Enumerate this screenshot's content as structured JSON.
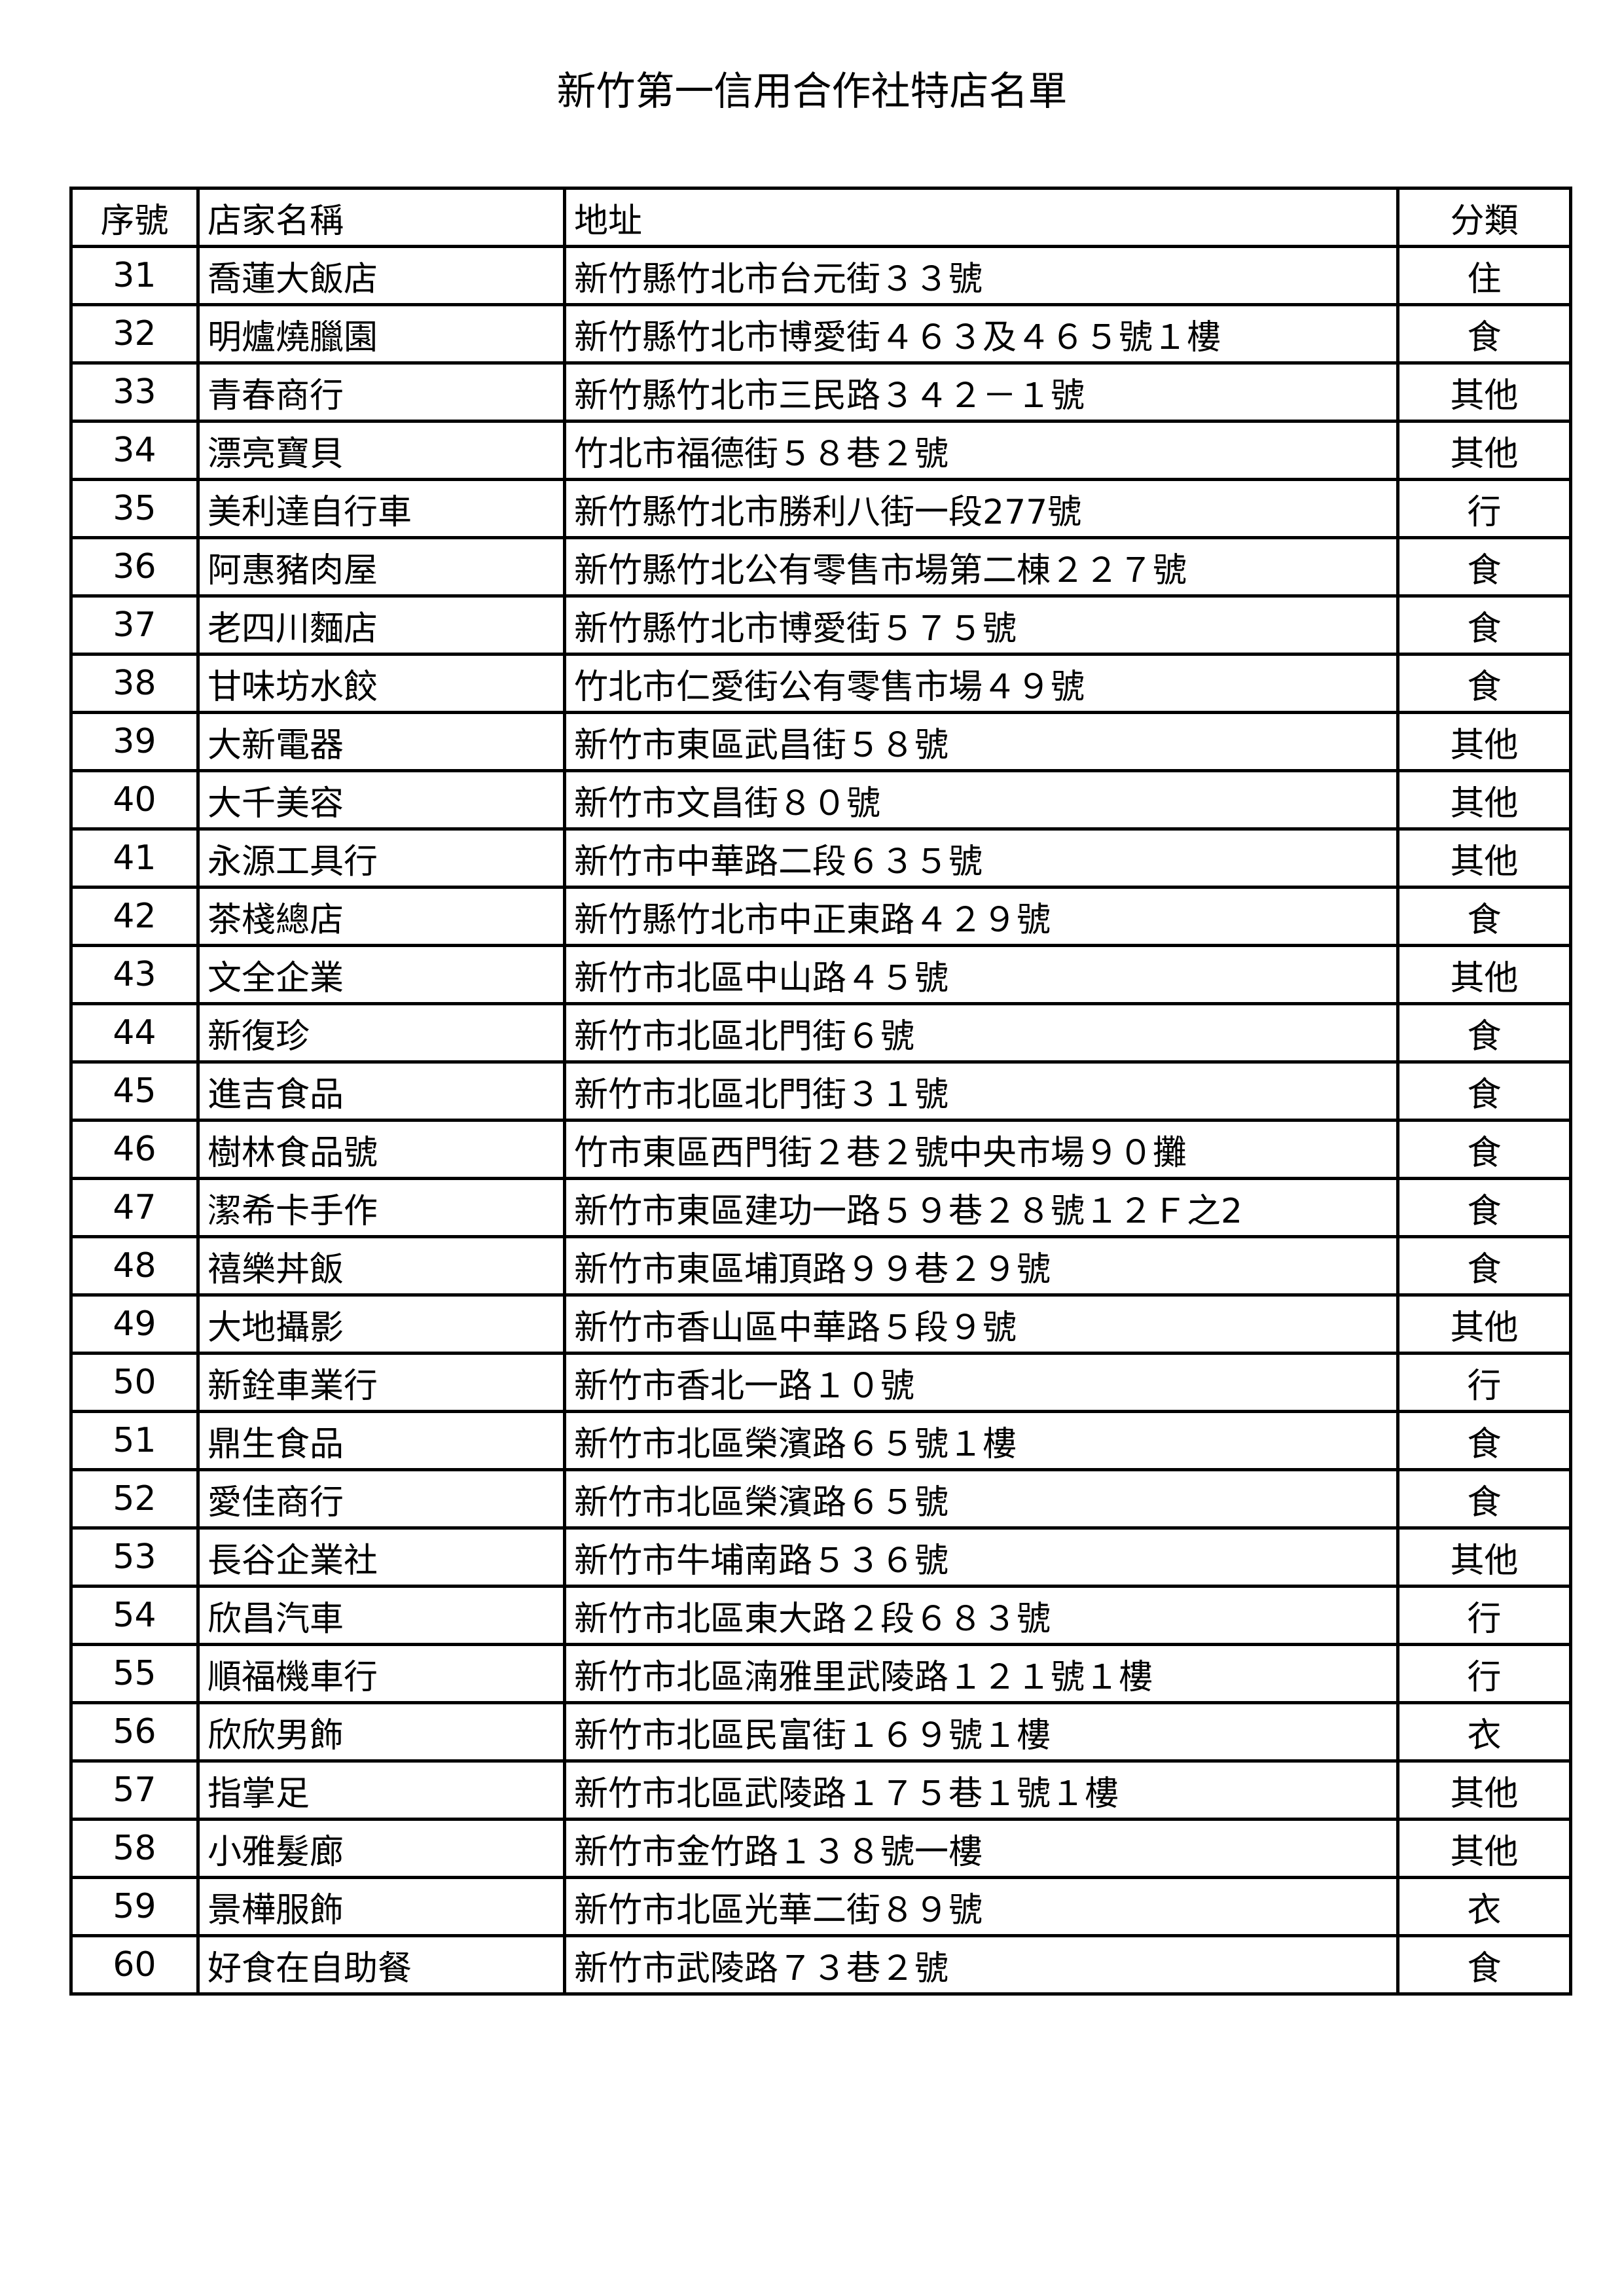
{
  "title": "新竹第一信用合作社特店名單",
  "columns": [
    "序號",
    "店家名稱",
    "地址",
    "分類"
  ],
  "rows": [
    [
      "31",
      "喬蓮大飯店",
      "新竹縣竹北市台元街３３號",
      "住"
    ],
    [
      "32",
      "明爐燒臘園",
      "新竹縣竹北市博愛街４６３及４６５號１樓",
      "食"
    ],
    [
      "33",
      "青春商行",
      "新竹縣竹北市三民路３４２－１號",
      "其他"
    ],
    [
      "34",
      "漂亮寶貝",
      "竹北市福德街５８巷２號",
      "其他"
    ],
    [
      "35",
      "美利達自行車",
      "新竹縣竹北市勝利八街一段277號",
      "行"
    ],
    [
      "36",
      "阿惠豬肉屋",
      "新竹縣竹北公有零售市場第二棟２２７號",
      "食"
    ],
    [
      "37",
      "老四川麵店",
      "新竹縣竹北市博愛街５７５號",
      "食"
    ],
    [
      "38",
      "甘味坊水餃",
      "竹北市仁愛街公有零售市場４９號",
      "食"
    ],
    [
      "39",
      "大新電器",
      "新竹市東區武昌街５８號",
      "其他"
    ],
    [
      "40",
      "大千美容",
      "新竹市文昌街８０號",
      "其他"
    ],
    [
      "41",
      "永源工具行",
      "新竹市中華路二段６３５號",
      "其他"
    ],
    [
      "42",
      "茶棧總店",
      "新竹縣竹北市中正東路４２９號",
      "食"
    ],
    [
      "43",
      "文全企業",
      "新竹市北區中山路４５號",
      "其他"
    ],
    [
      "44",
      "新復珍",
      "新竹市北區北門街６號",
      "食"
    ],
    [
      "45",
      "進吉食品",
      "新竹市北區北門街３１號",
      "食"
    ],
    [
      "46",
      "樹林食品號",
      "竹市東區西門街２巷２號中央市場９０攤",
      "食"
    ],
    [
      "47",
      "潔希卡手作",
      "新竹市東區建功一路５９巷２８號１２Ｆ之2",
      "食"
    ],
    [
      "48",
      "禧樂丼飯",
      "新竹市東區埔頂路９９巷２９號",
      "食"
    ],
    [
      "49",
      "大地攝影",
      "新竹市香山區中華路５段９號",
      "其他"
    ],
    [
      "50",
      "新銓車業行",
      "新竹市香北一路１０號",
      "行"
    ],
    [
      "51",
      "鼎生食品",
      "新竹市北區榮濱路６５號１樓",
      "食"
    ],
    [
      "52",
      "愛佳商行",
      "新竹市北區榮濱路６５號",
      "食"
    ],
    [
      "53",
      "長谷企業社",
      "新竹市牛埔南路５３６號",
      "其他"
    ],
    [
      "54",
      "欣昌汽車",
      "新竹市北區東大路２段６８３號",
      "行"
    ],
    [
      "55",
      "順福機車行",
      "新竹市北區湳雅里武陵路１２１號１樓",
      "行"
    ],
    [
      "56",
      "欣欣男飾",
      "新竹市北區民富街１６９號１樓",
      "衣"
    ],
    [
      "57",
      "指掌足",
      "新竹市北區武陵路１７５巷１號１樓",
      "其他"
    ],
    [
      "58",
      "小雅髮廊",
      "新竹市金竹路１３８號一樓",
      "其他"
    ],
    [
      "59",
      "景樺服飾",
      "新竹市北區光華二街８９號",
      "衣"
    ],
    [
      "60",
      "好食在自助餐",
      "新竹市武陵路７３巷２號",
      "食"
    ]
  ]
}
